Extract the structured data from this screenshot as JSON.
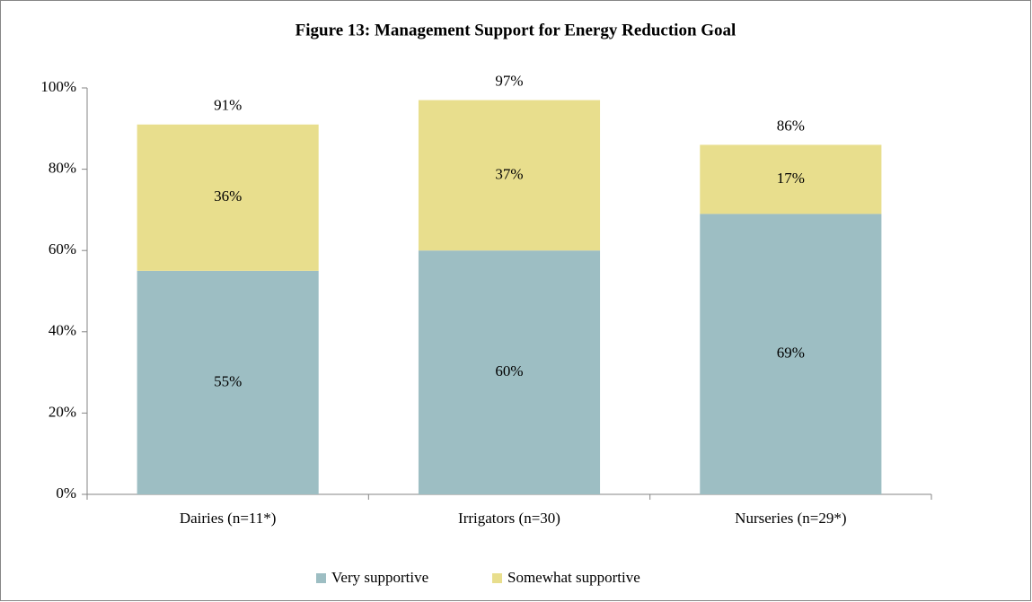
{
  "chart_data": {
    "type": "stacked_bar",
    "title": "Figure 13: Management Support for Energy Reduction Goal",
    "categories": [
      "Dairies (n=11*)",
      "Irrigators (n=30)",
      "Nurseries (n=29*)"
    ],
    "series": [
      {
        "name": "Very supportive",
        "color": "#9dbec3",
        "values": [
          55,
          60,
          69
        ],
        "value_labels": [
          "55%",
          "60%",
          "69%"
        ]
      },
      {
        "name": "Somewhat supportive",
        "color": "#e8de8d",
        "values": [
          36,
          37,
          17
        ],
        "value_labels": [
          "36%",
          "37%",
          "17%"
        ]
      }
    ],
    "totals": [
      91,
      97,
      86
    ],
    "totals_labels": [
      "91%",
      "97%",
      "86%"
    ],
    "ylim": [
      0,
      100
    ],
    "yticks": [
      {
        "value": 0,
        "label": "0%"
      },
      {
        "value": 20,
        "label": "20%"
      },
      {
        "value": 40,
        "label": "40%"
      },
      {
        "value": 60,
        "label": "60%"
      },
      {
        "value": 80,
        "label": "80%"
      },
      {
        "value": 100,
        "label": "100%"
      }
    ],
    "grid": false,
    "legend": "bottom"
  }
}
